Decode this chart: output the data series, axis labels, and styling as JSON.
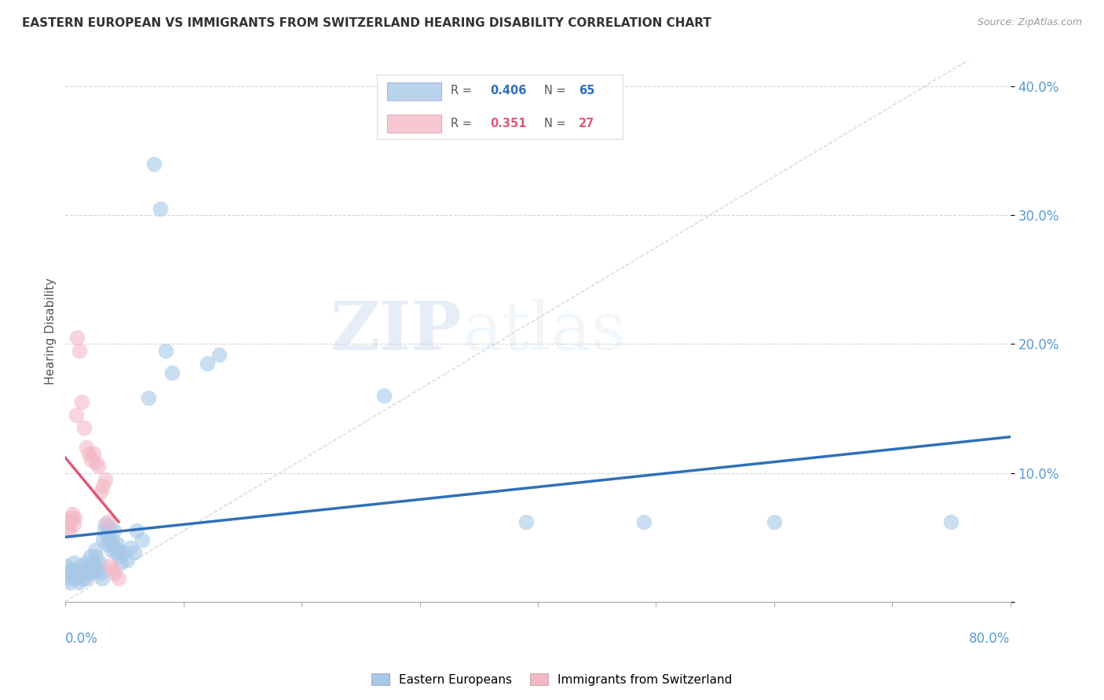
{
  "title": "EASTERN EUROPEAN VS IMMIGRANTS FROM SWITZERLAND HEARING DISABILITY CORRELATION CHART",
  "source": "Source: ZipAtlas.com",
  "ylabel": "Hearing Disability",
  "blue_R": 0.406,
  "blue_N": 65,
  "pink_R": 0.351,
  "pink_N": 27,
  "blue_color": "#a8c8e8",
  "pink_color": "#f4b8c8",
  "blue_line_color": "#3070b8",
  "pink_line_color": "#e05878",
  "blue_points": [
    [
      0.001,
      0.028
    ],
    [
      0.002,
      0.022
    ],
    [
      0.003,
      0.018
    ],
    [
      0.004,
      0.015
    ],
    [
      0.005,
      0.025
    ],
    [
      0.006,
      0.02
    ],
    [
      0.007,
      0.03
    ],
    [
      0.008,
      0.025
    ],
    [
      0.009,
      0.018
    ],
    [
      0.01,
      0.022
    ],
    [
      0.011,
      0.015
    ],
    [
      0.012,
      0.02
    ],
    [
      0.013,
      0.028
    ],
    [
      0.014,
      0.022
    ],
    [
      0.015,
      0.018
    ],
    [
      0.016,
      0.025
    ],
    [
      0.017,
      0.03
    ],
    [
      0.018,
      0.018
    ],
    [
      0.019,
      0.022
    ],
    [
      0.02,
      0.028
    ],
    [
      0.021,
      0.035
    ],
    [
      0.022,
      0.025
    ],
    [
      0.023,
      0.03
    ],
    [
      0.024,
      0.022
    ],
    [
      0.025,
      0.04
    ],
    [
      0.026,
      0.035
    ],
    [
      0.027,
      0.028
    ],
    [
      0.028,
      0.025
    ],
    [
      0.029,
      0.03
    ],
    [
      0.03,
      0.022
    ],
    [
      0.031,
      0.018
    ],
    [
      0.032,
      0.048
    ],
    [
      0.033,
      0.055
    ],
    [
      0.034,
      0.06
    ],
    [
      0.035,
      0.045
    ],
    [
      0.036,
      0.052
    ],
    [
      0.037,
      0.058
    ],
    [
      0.038,
      0.045
    ],
    [
      0.039,
      0.04
    ],
    [
      0.04,
      0.048
    ],
    [
      0.041,
      0.055
    ],
    [
      0.042,
      0.042
    ],
    [
      0.043,
      0.038
    ],
    [
      0.044,
      0.045
    ],
    [
      0.045,
      0.04
    ],
    [
      0.046,
      0.035
    ],
    [
      0.047,
      0.03
    ],
    [
      0.05,
      0.038
    ],
    [
      0.052,
      0.032
    ],
    [
      0.055,
      0.042
    ],
    [
      0.058,
      0.038
    ],
    [
      0.06,
      0.055
    ],
    [
      0.065,
      0.048
    ],
    [
      0.07,
      0.158
    ],
    [
      0.075,
      0.34
    ],
    [
      0.08,
      0.305
    ],
    [
      0.085,
      0.195
    ],
    [
      0.09,
      0.178
    ],
    [
      0.12,
      0.185
    ],
    [
      0.13,
      0.192
    ],
    [
      0.27,
      0.16
    ],
    [
      0.39,
      0.062
    ],
    [
      0.49,
      0.062
    ],
    [
      0.6,
      0.062
    ],
    [
      0.75,
      0.062
    ]
  ],
  "pink_points": [
    [
      0.001,
      0.062
    ],
    [
      0.002,
      0.058
    ],
    [
      0.003,
      0.055
    ],
    [
      0.004,
      0.062
    ],
    [
      0.005,
      0.065
    ],
    [
      0.006,
      0.068
    ],
    [
      0.007,
      0.06
    ],
    [
      0.008,
      0.065
    ],
    [
      0.009,
      0.145
    ],
    [
      0.01,
      0.205
    ],
    [
      0.012,
      0.195
    ],
    [
      0.014,
      0.155
    ],
    [
      0.016,
      0.135
    ],
    [
      0.018,
      0.12
    ],
    [
      0.02,
      0.115
    ],
    [
      0.022,
      0.11
    ],
    [
      0.024,
      0.115
    ],
    [
      0.026,
      0.108
    ],
    [
      0.028,
      0.105
    ],
    [
      0.03,
      0.085
    ],
    [
      0.032,
      0.09
    ],
    [
      0.034,
      0.095
    ],
    [
      0.036,
      0.062
    ],
    [
      0.038,
      0.028
    ],
    [
      0.04,
      0.025
    ],
    [
      0.042,
      0.022
    ],
    [
      0.045,
      0.018
    ]
  ],
  "xlim": [
    0.0,
    0.8
  ],
  "ylim": [
    0.0,
    0.42
  ],
  "yticks": [
    0.0,
    0.1,
    0.2,
    0.3,
    0.4
  ],
  "ytick_labels": [
    "",
    "10.0%",
    "20.0%",
    "30.0%",
    "40.0%"
  ],
  "watermark_zip": "ZIP",
  "watermark_atlas": "atlas",
  "background_color": "#ffffff"
}
